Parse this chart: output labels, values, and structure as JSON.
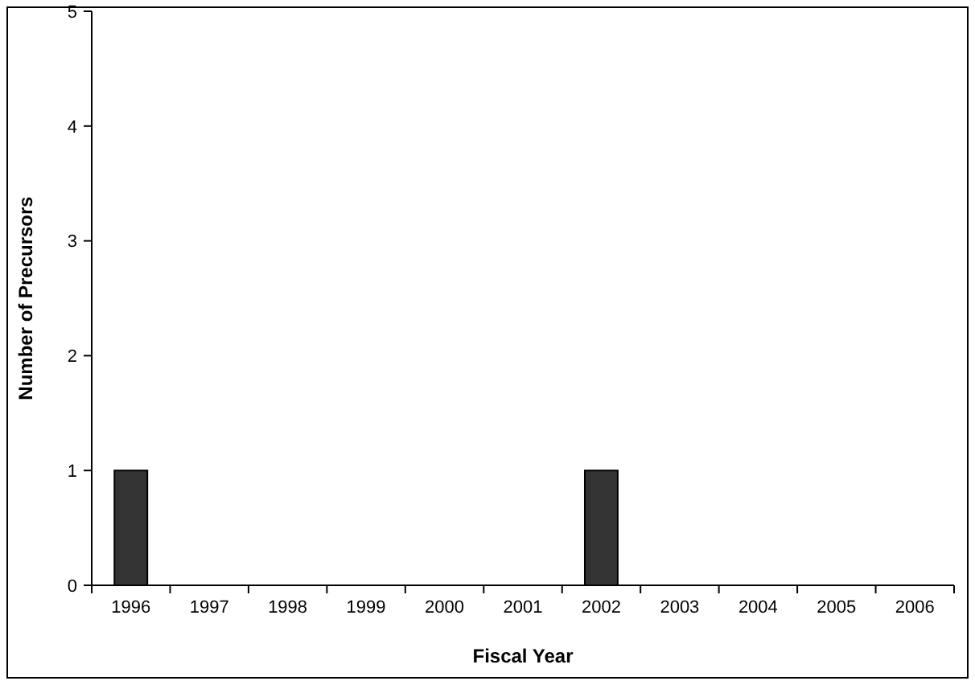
{
  "chart_data": {
    "type": "bar",
    "xlabel": "Fiscal Year",
    "ylabel": "Number of Precursors",
    "categories": [
      "1996",
      "1997",
      "1998",
      "1999",
      "2000",
      "2001",
      "2002",
      "2003",
      "2004",
      "2005",
      "2006"
    ],
    "values": [
      1,
      0,
      0,
      0,
      0,
      0,
      1,
      0,
      0,
      0,
      0
    ],
    "color": "#333333",
    "ylim": [
      0,
      5
    ],
    "yticks": [
      0,
      1,
      2,
      3,
      4,
      5
    ],
    "grid": false
  }
}
